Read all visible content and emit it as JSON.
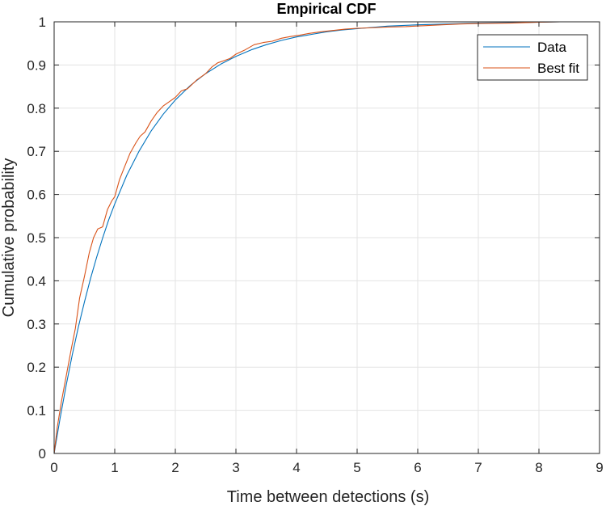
{
  "chart_data": {
    "type": "line",
    "title": "Empirical CDF",
    "xlabel": "Time between detections (s)",
    "ylabel": "Cumulative probability",
    "xlim": [
      0,
      9
    ],
    "ylim": [
      0,
      1
    ],
    "xticks": [
      0,
      1,
      2,
      3,
      4,
      5,
      6,
      7,
      8,
      9
    ],
    "xtick_labels": [
      "0",
      "1",
      "2",
      "3",
      "4",
      "5",
      "6",
      "7",
      "8",
      "9"
    ],
    "yticks": [
      0,
      0.1,
      0.2,
      0.3,
      0.4,
      0.5,
      0.6,
      0.7,
      0.8,
      0.9,
      1
    ],
    "ytick_labels": [
      "0",
      "0.1",
      "0.2",
      "0.3",
      "0.4",
      "0.5",
      "0.6",
      "0.7",
      "0.8",
      "0.9",
      "1"
    ],
    "grid": true,
    "legend_position": "top-right",
    "series": [
      {
        "name": "Data",
        "color": "#0072BD",
        "x": [
          0,
          0.1,
          0.2,
          0.3,
          0.4,
          0.5,
          0.6,
          0.7,
          0.8,
          0.9,
          1.0,
          1.2,
          1.4,
          1.6,
          1.8,
          2.0,
          2.25,
          2.5,
          2.75,
          3.0,
          3.25,
          3.5,
          3.75,
          4.0,
          4.25,
          4.5,
          4.75,
          5.0,
          5.5,
          6.0,
          6.5,
          7.0,
          7.5,
          8.0,
          8.35
        ],
        "values": [
          0,
          0.083,
          0.159,
          0.229,
          0.293,
          0.351,
          0.405,
          0.454,
          0.499,
          0.541,
          0.578,
          0.645,
          0.7,
          0.747,
          0.786,
          0.819,
          0.853,
          0.88,
          0.902,
          0.92,
          0.935,
          0.947,
          0.957,
          0.965,
          0.971,
          0.977,
          0.981,
          0.984,
          0.99,
          0.993,
          0.995,
          0.997,
          0.998,
          0.999,
          1.0
        ]
      },
      {
        "name": "Best fit",
        "color": "#D95319",
        "x": [
          0,
          0.05,
          0.12,
          0.2,
          0.28,
          0.35,
          0.42,
          0.5,
          0.58,
          0.65,
          0.72,
          0.8,
          0.88,
          0.95,
          1.0,
          1.08,
          1.15,
          1.25,
          1.35,
          1.42,
          1.5,
          1.6,
          1.7,
          1.8,
          1.9,
          2.0,
          2.1,
          2.2,
          2.35,
          2.5,
          2.6,
          2.7,
          2.8,
          2.9,
          3.0,
          3.15,
          3.3,
          3.45,
          3.6,
          3.75,
          3.9,
          4.05,
          4.2,
          4.4,
          4.6,
          4.8,
          5.0,
          5.2,
          5.5,
          5.8,
          6.1,
          6.4,
          6.7,
          7.0,
          7.5,
          8.0,
          8.35
        ],
        "values": [
          0,
          0.06,
          0.12,
          0.18,
          0.24,
          0.29,
          0.36,
          0.41,
          0.465,
          0.5,
          0.52,
          0.525,
          0.565,
          0.585,
          0.595,
          0.635,
          0.66,
          0.695,
          0.72,
          0.735,
          0.745,
          0.77,
          0.79,
          0.805,
          0.815,
          0.825,
          0.84,
          0.845,
          0.865,
          0.88,
          0.895,
          0.905,
          0.91,
          0.915,
          0.925,
          0.935,
          0.947,
          0.952,
          0.955,
          0.962,
          0.966,
          0.969,
          0.973,
          0.977,
          0.98,
          0.983,
          0.985,
          0.986,
          0.988,
          0.989,
          0.991,
          0.993,
          0.995,
          0.996,
          0.997,
          0.999,
          1.0
        ]
      }
    ]
  }
}
